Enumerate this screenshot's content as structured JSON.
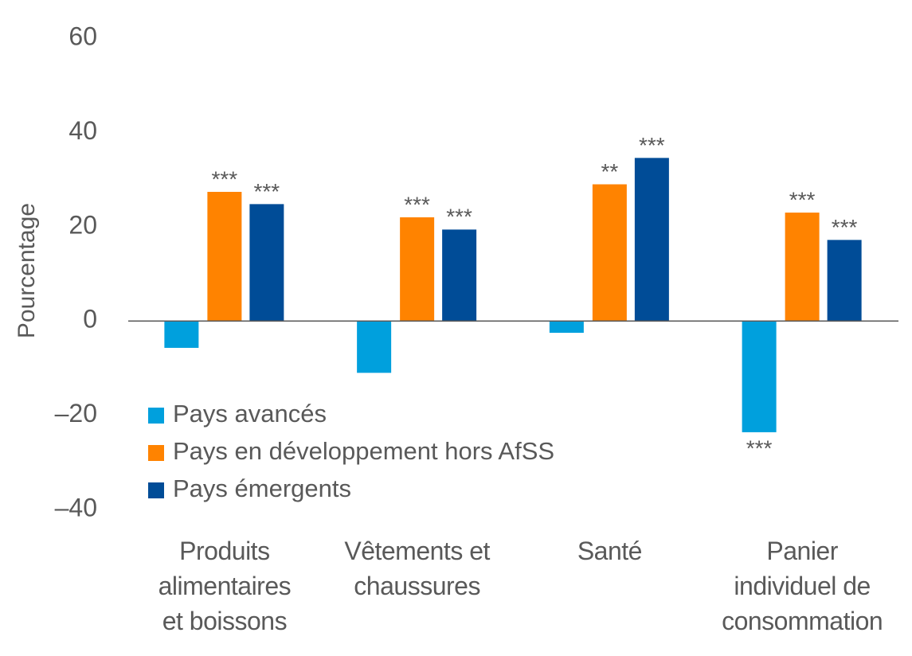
{
  "chart_data": {
    "type": "bar",
    "y_label": "Pourcentage",
    "categories": [
      "Produits\nalimentaires\net boissons",
      "Vêtements et\nchaussures",
      "Santé",
      "Panier\nindividuel de\nconsommation"
    ],
    "series": [
      {
        "name": "Pays avancés",
        "color": "#00a0dd",
        "values": [
          -5.7,
          -11,
          -2.5,
          -23.6
        ],
        "significance": [
          null,
          null,
          null,
          "***"
        ]
      },
      {
        "name": "Pays en développement hors AfSS",
        "color": "#ff8300",
        "values": [
          27.4,
          22,
          29,
          23
        ],
        "significance": [
          "***",
          "***",
          "**",
          "***"
        ]
      },
      {
        "name": "Pays émergents",
        "color": "#004c97",
        "values": [
          24.8,
          19.4,
          34.6,
          17.2
        ],
        "significance": [
          "***",
          "***",
          "***",
          "***"
        ]
      }
    ],
    "ylim": [
      -40,
      60
    ],
    "yticks": [
      {
        "value": -40,
        "label": "–40"
      },
      {
        "value": -20,
        "label": "–20"
      },
      0,
      20,
      40,
      60
    ],
    "legend": "lower left"
  }
}
